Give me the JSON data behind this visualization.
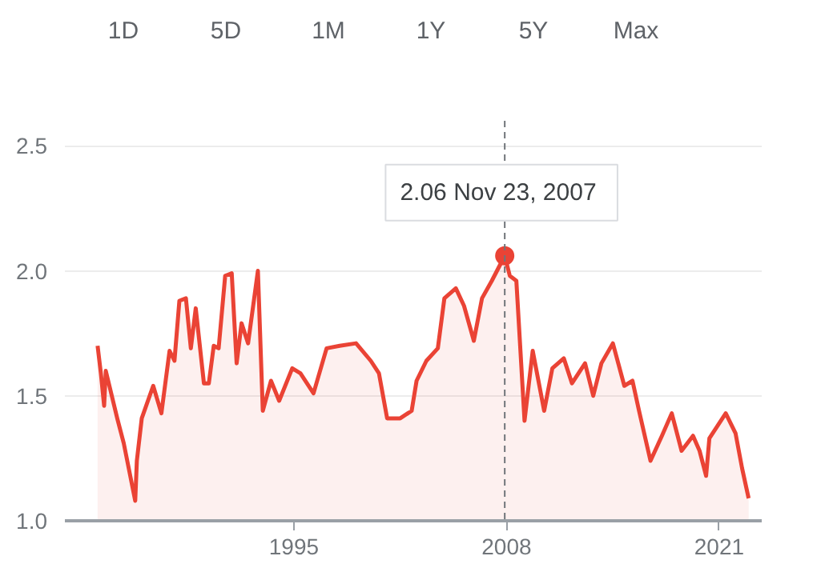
{
  "chart_data": {
    "type": "area",
    "x": [
      1983.0,
      1983.2,
      1983.4,
      1983.5,
      1984.2,
      1984.6,
      1985.3,
      1985.4,
      1985.7,
      1986.4,
      1986.9,
      1987.4,
      1987.7,
      1988.0,
      1988.4,
      1988.7,
      1989.0,
      1989.5,
      1989.8,
      1990.1,
      1990.4,
      1990.8,
      1991.2,
      1991.5,
      1991.8,
      1992.2,
      1992.8,
      1993.1,
      1993.6,
      1994.1,
      1994.9,
      1995.4,
      1996.2,
      1997.0,
      1997.8,
      1998.8,
      1999.7,
      2000.2,
      2000.7,
      2001.5,
      2002.2,
      2002.5,
      2003.1,
      2003.8,
      2004.2,
      2004.9,
      2005.4,
      2006.0,
      2006.5,
      2007.1,
      2007.89,
      2008.2,
      2008.6,
      2009.1,
      2009.6,
      2010.3,
      2010.8,
      2011.5,
      2012.0,
      2012.8,
      2013.3,
      2013.8,
      2014.5,
      2015.2,
      2015.7,
      2016.1,
      2016.8,
      2017.5,
      2018.1,
      2018.7,
      2019.4,
      2019.8,
      2020.2,
      2020.4,
      2021.4,
      2022.0,
      2022.4,
      2022.8
    ],
    "series": [
      {
        "color": "#ea4335",
        "values": [
          1.7,
          1.59,
          1.46,
          1.6,
          1.41,
          1.31,
          1.08,
          1.24,
          1.41,
          1.54,
          1.43,
          1.68,
          1.64,
          1.88,
          1.89,
          1.69,
          1.85,
          1.55,
          1.55,
          1.7,
          1.69,
          1.98,
          1.99,
          1.63,
          1.79,
          1.71,
          2.0,
          1.44,
          1.56,
          1.48,
          1.61,
          1.59,
          1.51,
          1.69,
          1.7,
          1.71,
          1.64,
          1.59,
          1.41,
          1.41,
          1.44,
          1.56,
          1.64,
          1.69,
          1.89,
          1.93,
          1.86,
          1.72,
          1.89,
          1.96,
          2.06,
          1.98,
          1.96,
          1.4,
          1.68,
          1.44,
          1.61,
          1.65,
          1.55,
          1.63,
          1.5,
          1.63,
          1.71,
          1.54,
          1.56,
          1.44,
          1.24,
          1.34,
          1.43,
          1.28,
          1.34,
          1.28,
          1.18,
          1.33,
          1.43,
          1.35,
          1.21,
          1.09
        ]
      }
    ],
    "xlim": [
      1981.0,
      2023.6
    ],
    "xticks": [
      1995,
      2008,
      2021
    ],
    "ylim": [
      1.0,
      2.6
    ],
    "yticks": [
      {
        "value": 1.0,
        "label": "1.0"
      },
      1.5,
      {
        "value": 2.0,
        "label": "2.0"
      },
      2.5
    ],
    "grid": "y",
    "ref_lines": [
      {
        "axis": "x",
        "value": 2007.89,
        "label": null,
        "color": "#70757a",
        "line_style": "dashed"
      }
    ],
    "annotations": [
      "1D",
      "5D",
      "1M",
      "1Y",
      "5Y",
      "Max",
      {
        "text": "2.06  Nov 23, 2007",
        "x": 2007.89,
        "y": 2.06
      }
    ]
  }
}
